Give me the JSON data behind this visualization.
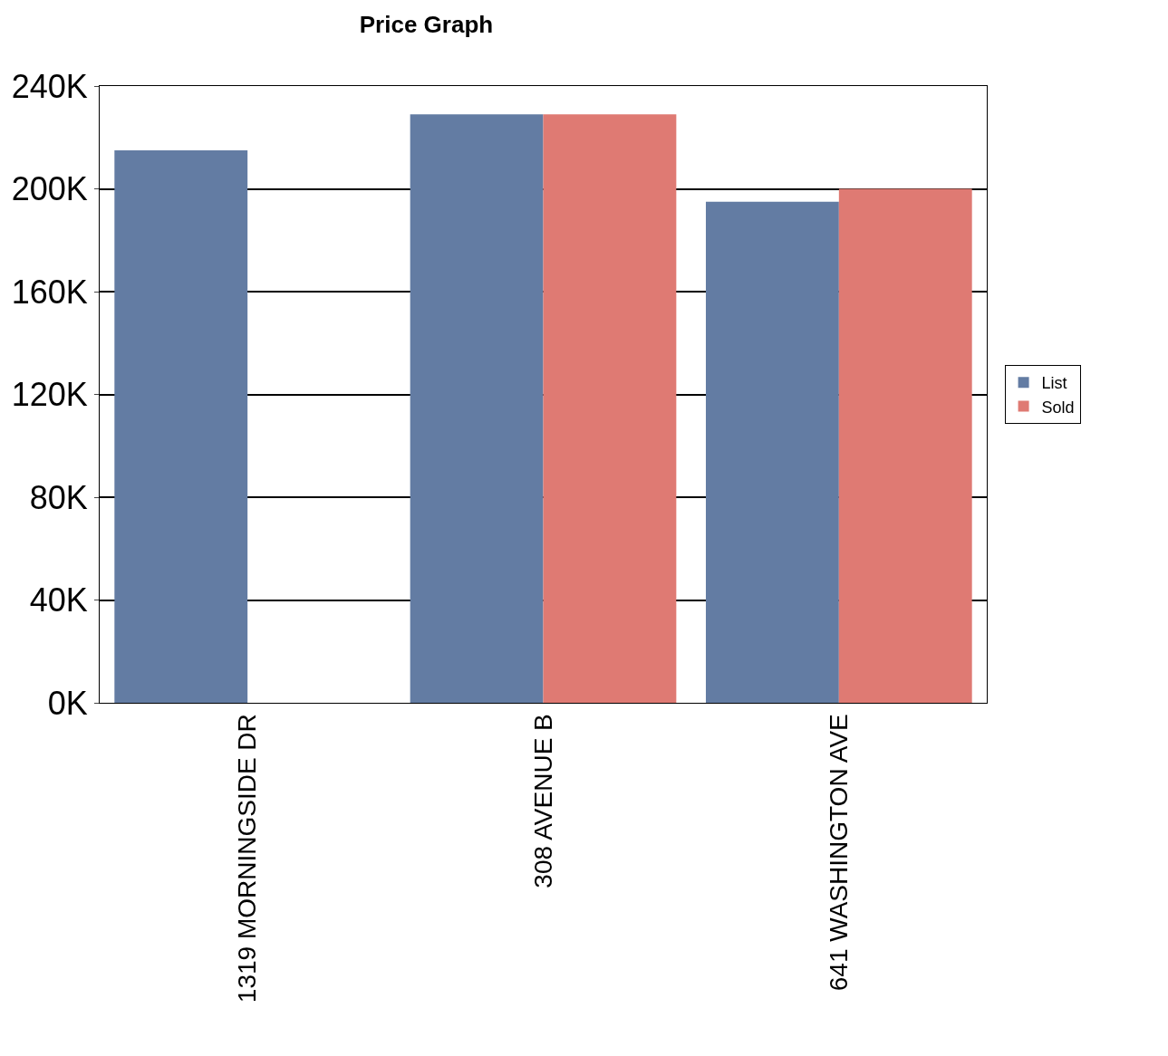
{
  "chart_data": {
    "type": "bar",
    "title": "Price Graph",
    "categories": [
      "1319 MORNINGSIDE DR",
      "308 AVENUE B",
      "641 WASHINGTON AVE"
    ],
    "series": [
      {
        "name": "List",
        "color": "#637ca3",
        "values": [
          215000,
          229000,
          195000
        ]
      },
      {
        "name": "Sold",
        "color": "#df7a73",
        "values": [
          null,
          229000,
          200000
        ]
      }
    ],
    "ylim": [
      0,
      240000
    ],
    "yticks": [
      {
        "value": 0,
        "label": "0K"
      },
      {
        "value": 40000,
        "label": "40K"
      },
      {
        "value": 80000,
        "label": "80K"
      },
      {
        "value": 120000,
        "label": "120K"
      },
      {
        "value": 160000,
        "label": "160K"
      },
      {
        "value": 200000,
        "label": "200K"
      },
      {
        "value": 240000,
        "label": "240K"
      }
    ],
    "grid": "y",
    "legend": "right"
  }
}
